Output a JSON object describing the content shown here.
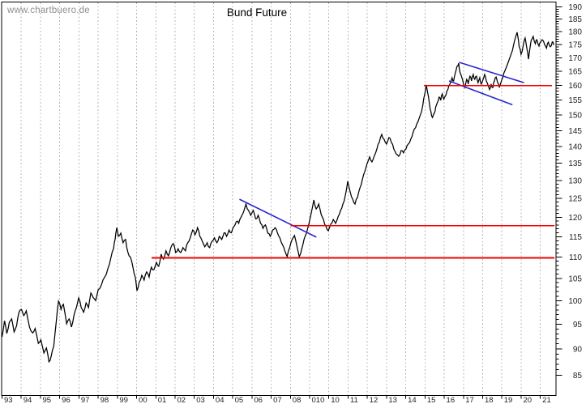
{
  "watermark": {
    "text": "www.chartbuero.de"
  },
  "chart_data": {
    "type": "line",
    "title": "Bund Future",
    "xlabel": "",
    "ylabel": "",
    "legend": "none",
    "grid": "vertical-dashed-yearly",
    "y_axis": {
      "side": "right",
      "scale": "log",
      "range": [
        85,
        190
      ],
      "tick_step_major": 5,
      "tick_step_minor": 1,
      "labels": [
        190,
        185,
        180,
        175,
        170,
        165,
        160,
        155,
        150,
        145,
        140,
        135,
        130,
        125,
        120,
        115,
        110,
        105,
        100,
        95,
        90,
        85
      ]
    },
    "x_axis": {
      "start_year": 1993,
      "labels": [
        "93",
        "94",
        "95",
        "96",
        "97",
        "98",
        "99",
        "00",
        "01",
        "02",
        "03",
        "04",
        "05",
        "06",
        "07",
        "08",
        "010",
        "10",
        "11",
        "12",
        "13",
        "14",
        "15",
        "16",
        "17",
        "18",
        "19",
        "20",
        "21"
      ]
    },
    "series": {
      "name": "Bund Future",
      "color": "#000000",
      "points": [
        [
          1993.0,
          92.4
        ],
        [
          1993.13,
          95.7
        ],
        [
          1993.25,
          93.1
        ],
        [
          1993.38,
          95.4
        ],
        [
          1993.5,
          96.1
        ],
        [
          1993.63,
          93.4
        ],
        [
          1993.76,
          94.7
        ],
        [
          1993.88,
          97.5
        ],
        [
          1994.01,
          98.1
        ],
        [
          1994.13,
          96.8
        ],
        [
          1994.26,
          97.8
        ],
        [
          1994.43,
          94.4
        ],
        [
          1994.6,
          93.2
        ],
        [
          1994.72,
          94.1
        ],
        [
          1994.89,
          91.1
        ],
        [
          1995.02,
          91.8
        ],
        [
          1995.18,
          89.2
        ],
        [
          1995.31,
          90.2
        ],
        [
          1995.44,
          87.5
        ],
        [
          1995.56,
          88.6
        ],
        [
          1995.69,
          90.5
        ],
        [
          1995.82,
          95.5
        ],
        [
          1995.94,
          99.9
        ],
        [
          1996.07,
          98.1
        ],
        [
          1996.19,
          99.2
        ],
        [
          1996.36,
          95.1
        ],
        [
          1996.49,
          96.1
        ],
        [
          1996.61,
          94.4
        ],
        [
          1996.74,
          96.8
        ],
        [
          1996.87,
          98.5
        ],
        [
          1996.99,
          100.6
        ],
        [
          1997.12,
          98.5
        ],
        [
          1997.24,
          97.5
        ],
        [
          1997.37,
          99.5
        ],
        [
          1997.5,
          98.5
        ],
        [
          1997.62,
          101.7
        ],
        [
          1997.75,
          100.6
        ],
        [
          1997.87,
          100.0
        ],
        [
          1998.0,
          102.4
        ],
        [
          1998.17,
          103.5
        ],
        [
          1998.34,
          105.3
        ],
        [
          1998.5,
          107.2
        ],
        [
          1998.67,
          110.0
        ],
        [
          1998.8,
          112.0
        ],
        [
          1998.88,
          114.3
        ],
        [
          1998.97,
          117.3
        ],
        [
          1999.05,
          115.1
        ],
        [
          1999.18,
          115.9
        ],
        [
          1999.3,
          113.5
        ],
        [
          1999.43,
          114.3
        ],
        [
          1999.55,
          111.1
        ],
        [
          1999.68,
          110.0
        ],
        [
          1999.81,
          107.6
        ],
        [
          1999.93,
          105.3
        ],
        [
          2000.02,
          102.2
        ],
        [
          2000.14,
          104.2
        ],
        [
          2000.27,
          105.7
        ],
        [
          2000.39,
          104.6
        ],
        [
          2000.52,
          106.5
        ],
        [
          2000.65,
          105.3
        ],
        [
          2000.77,
          107.6
        ],
        [
          2000.9,
          107.0
        ],
        [
          2001.03,
          108.7
        ],
        [
          2001.15,
          107.8
        ],
        [
          2001.28,
          110.7
        ],
        [
          2001.4,
          109.5
        ],
        [
          2001.53,
          111.5
        ],
        [
          2001.66,
          110.3
        ],
        [
          2001.78,
          112.3
        ],
        [
          2001.91,
          113.3
        ],
        [
          2002.03,
          111.1
        ],
        [
          2002.16,
          112.0
        ],
        [
          2002.29,
          111.1
        ],
        [
          2002.41,
          112.3
        ],
        [
          2002.54,
          111.5
        ],
        [
          2002.66,
          113.5
        ],
        [
          2002.79,
          114.7
        ],
        [
          2002.92,
          116.7
        ],
        [
          2003.04,
          115.5
        ],
        [
          2003.17,
          117.3
        ],
        [
          2003.29,
          115.1
        ],
        [
          2003.42,
          113.8
        ],
        [
          2003.55,
          112.5
        ],
        [
          2003.67,
          113.5
        ],
        [
          2003.8,
          112.3
        ],
        [
          2003.92,
          113.8
        ],
        [
          2004.05,
          114.7
        ],
        [
          2004.18,
          113.5
        ],
        [
          2004.3,
          115.1
        ],
        [
          2004.43,
          114.3
        ],
        [
          2004.55,
          116.0
        ],
        [
          2004.68,
          115.1
        ],
        [
          2004.81,
          116.7
        ],
        [
          2004.93,
          116.0
        ],
        [
          2005.06,
          117.6
        ],
        [
          2005.18,
          118.8
        ],
        [
          2005.31,
          118.4
        ],
        [
          2005.44,
          120.1
        ],
        [
          2005.56,
          121.3
        ],
        [
          2005.69,
          123.5
        ],
        [
          2005.82,
          121.8
        ],
        [
          2005.94,
          120.5
        ],
        [
          2006.07,
          121.8
        ],
        [
          2006.19,
          119.6
        ],
        [
          2006.32,
          120.5
        ],
        [
          2006.45,
          118.4
        ],
        [
          2006.57,
          117.1
        ],
        [
          2006.7,
          118.0
        ],
        [
          2006.82,
          115.9
        ],
        [
          2006.95,
          115.1
        ],
        [
          2007.08,
          116.7
        ],
        [
          2007.2,
          117.3
        ],
        [
          2007.33,
          115.9
        ],
        [
          2007.45,
          114.7
        ],
        [
          2007.58,
          113.1
        ],
        [
          2007.71,
          111.5
        ],
        [
          2007.83,
          110.1
        ],
        [
          2007.96,
          112.3
        ],
        [
          2008.09,
          114.3
        ],
        [
          2008.21,
          115.3
        ],
        [
          2008.34,
          112.6
        ],
        [
          2008.46,
          110.1
        ],
        [
          2008.59,
          112.0
        ],
        [
          2008.71,
          114.3
        ],
        [
          2008.84,
          115.9
        ],
        [
          2008.97,
          118.4
        ],
        [
          2009.09,
          121.3
        ],
        [
          2009.22,
          124.6
        ],
        [
          2009.34,
          122.2
        ],
        [
          2009.47,
          123.5
        ],
        [
          2009.6,
          120.7
        ],
        [
          2009.72,
          119.4
        ],
        [
          2009.85,
          117.6
        ],
        [
          2009.97,
          116.5
        ],
        [
          2010.1,
          118.2
        ],
        [
          2010.23,
          119.4
        ],
        [
          2010.35,
          118.4
        ],
        [
          2010.48,
          120.1
        ],
        [
          2010.61,
          121.8
        ],
        [
          2010.73,
          123.5
        ],
        [
          2010.86,
          125.9
        ],
        [
          2010.98,
          129.8
        ],
        [
          2011.11,
          126.8
        ],
        [
          2011.24,
          124.8
        ],
        [
          2011.36,
          123.5
        ],
        [
          2011.49,
          125.3
        ],
        [
          2011.62,
          128.0
        ],
        [
          2011.74,
          130.2
        ],
        [
          2011.87,
          132.6
        ],
        [
          2011.99,
          134.9
        ],
        [
          2012.12,
          136.9
        ],
        [
          2012.24,
          135.4
        ],
        [
          2012.37,
          137.3
        ],
        [
          2012.5,
          139.3
        ],
        [
          2012.62,
          141.3
        ],
        [
          2012.75,
          143.8
        ],
        [
          2012.87,
          142.3
        ],
        [
          2013.0,
          140.8
        ],
        [
          2013.13,
          142.8
        ],
        [
          2013.25,
          141.3
        ],
        [
          2013.38,
          139.3
        ],
        [
          2013.5,
          137.8
        ],
        [
          2013.63,
          137.1
        ],
        [
          2013.76,
          138.8
        ],
        [
          2013.88,
          138.1
        ],
        [
          2014.01,
          139.3
        ],
        [
          2014.13,
          140.8
        ],
        [
          2014.26,
          142.3
        ],
        [
          2014.39,
          144.6
        ],
        [
          2014.51,
          145.9
        ],
        [
          2014.64,
          147.9
        ],
        [
          2014.76,
          150.0
        ],
        [
          2014.89,
          153.3
        ],
        [
          2014.97,
          156.5
        ],
        [
          2015.06,
          160.2
        ],
        [
          2015.14,
          157.4
        ],
        [
          2015.23,
          153.8
        ],
        [
          2015.31,
          151.1
        ],
        [
          2015.39,
          149.2
        ],
        [
          2015.48,
          150.6
        ],
        [
          2015.56,
          152.7
        ],
        [
          2015.65,
          154.3
        ],
        [
          2015.73,
          156.0
        ],
        [
          2015.82,
          154.9
        ],
        [
          2015.9,
          157.1
        ],
        [
          2015.98,
          155.3
        ],
        [
          2016.07,
          156.4
        ],
        [
          2016.15,
          158.2
        ],
        [
          2016.24,
          159.9
        ],
        [
          2016.32,
          161.0
        ],
        [
          2016.41,
          162.7
        ],
        [
          2016.49,
          161.6
        ],
        [
          2016.58,
          164.5
        ],
        [
          2016.66,
          166.8
        ],
        [
          2016.75,
          168.0
        ],
        [
          2016.83,
          164.5
        ],
        [
          2016.92,
          162.7
        ],
        [
          2017.0,
          160.5
        ],
        [
          2017.08,
          159.3
        ],
        [
          2017.17,
          162.2
        ],
        [
          2017.25,
          160.5
        ],
        [
          2017.34,
          163.3
        ],
        [
          2017.42,
          161.6
        ],
        [
          2017.51,
          163.9
        ],
        [
          2017.59,
          162.2
        ],
        [
          2017.68,
          163.3
        ],
        [
          2017.76,
          161.0
        ],
        [
          2017.85,
          162.7
        ],
        [
          2017.93,
          160.5
        ],
        [
          2018.02,
          162.2
        ],
        [
          2018.1,
          163.9
        ],
        [
          2018.19,
          161.6
        ],
        [
          2018.27,
          160.3
        ],
        [
          2018.36,
          158.6
        ],
        [
          2018.44,
          160.5
        ],
        [
          2018.53,
          159.3
        ],
        [
          2018.61,
          161.6
        ],
        [
          2018.7,
          163.0
        ],
        [
          2018.78,
          161.0
        ],
        [
          2018.87,
          159.3
        ],
        [
          2018.95,
          161.0
        ],
        [
          2019.04,
          162.7
        ],
        [
          2019.16,
          165.3
        ],
        [
          2019.33,
          168.3
        ],
        [
          2019.55,
          172.8
        ],
        [
          2019.66,
          176.5
        ],
        [
          2019.79,
          179.7
        ],
        [
          2019.9,
          174.1
        ],
        [
          2020.0,
          171.3
        ],
        [
          2020.12,
          175.0
        ],
        [
          2020.21,
          177.5
        ],
        [
          2020.3,
          173.4
        ],
        [
          2020.38,
          169.5
        ],
        [
          2020.52,
          176.5
        ],
        [
          2020.63,
          178.1
        ],
        [
          2020.74,
          175.3
        ],
        [
          2020.82,
          176.8
        ],
        [
          2020.93,
          174.4
        ],
        [
          2021.02,
          175.9
        ],
        [
          2021.1,
          176.8
        ],
        [
          2021.22,
          175.0
        ],
        [
          2021.32,
          173.6
        ],
        [
          2021.42,
          175.9
        ],
        [
          2021.52,
          174.1
        ],
        [
          2021.62,
          176.0
        ],
        [
          2021.7,
          174.8
        ]
      ]
    },
    "support_resistance_lines": [
      {
        "color": "#f20000",
        "price": 160.0,
        "from_year": 2014.95,
        "to_year": 2021.6
      },
      {
        "color": "#f20000",
        "price": 117.8,
        "from_year": 2008.0,
        "to_year": 2021.73
      },
      {
        "color": "#f20000",
        "price": 109.8,
        "from_year": 2000.78,
        "to_year": 2021.73
      }
    ],
    "trend_lines": [
      {
        "color": "#2626cd",
        "from": [
          2005.35,
          124.8
        ],
        "to": [
          2009.35,
          114.9
        ]
      },
      {
        "color": "#2626cd",
        "from": [
          2016.78,
          168.3
        ],
        "to": [
          2020.15,
          161.0
        ]
      },
      {
        "color": "#2626cd",
        "from": [
          2016.25,
          161.6
        ],
        "to": [
          2019.55,
          153.4
        ]
      }
    ]
  }
}
